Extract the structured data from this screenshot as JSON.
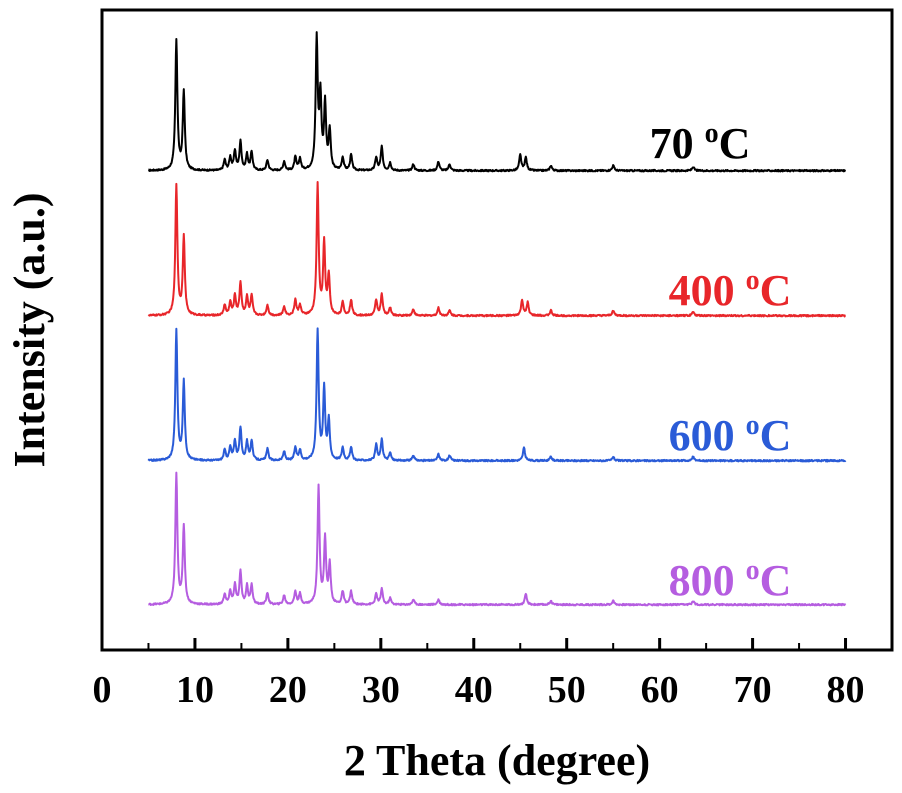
{
  "chart_data": {
    "type": "line",
    "xlabel": "2 Theta (degree)",
    "ylabel": "Intensity (a.u.)",
    "xlim": [
      0,
      85
    ],
    "xticks": [
      0,
      10,
      20,
      30,
      40,
      50,
      60,
      70,
      80
    ],
    "y_ticks_shown": false,
    "grid": false,
    "legend": "inline labels above each trace",
    "x_range_measured": [
      5,
      80
    ],
    "series": [
      {
        "name": "70 °C",
        "label_main": "70 ",
        "label_sup": "o",
        "label_unit": "C",
        "color": "#000000",
        "baseline_offset": 3,
        "baseline_height": 0.05,
        "peaks": [
          [
            8.0,
            1.0
          ],
          [
            8.8,
            0.6
          ],
          [
            13.2,
            0.08
          ],
          [
            13.8,
            0.1
          ],
          [
            14.3,
            0.15
          ],
          [
            14.9,
            0.22
          ],
          [
            15.6,
            0.12
          ],
          [
            16.1,
            0.14
          ],
          [
            17.8,
            0.08
          ],
          [
            19.6,
            0.07
          ],
          [
            20.8,
            0.1
          ],
          [
            21.3,
            0.09
          ],
          [
            23.1,
            1.0
          ],
          [
            23.5,
            0.55
          ],
          [
            24.0,
            0.5
          ],
          [
            24.5,
            0.3
          ],
          [
            25.9,
            0.1
          ],
          [
            26.8,
            0.12
          ],
          [
            29.5,
            0.1
          ],
          [
            30.1,
            0.18
          ],
          [
            31.0,
            0.06
          ],
          [
            33.5,
            0.05
          ],
          [
            36.2,
            0.07
          ],
          [
            37.4,
            0.05
          ],
          [
            45.0,
            0.12
          ],
          [
            45.6,
            0.1
          ],
          [
            48.3,
            0.04
          ],
          [
            55.0,
            0.04
          ],
          [
            63.6,
            0.03
          ]
        ]
      },
      {
        "name": "400 °C",
        "label_main": "400 ",
        "label_sup": "o",
        "label_unit": "C",
        "color": "#e8262a",
        "baseline_offset": 2,
        "baseline_height": 0.05,
        "peaks": [
          [
            8.0,
            1.0
          ],
          [
            8.8,
            0.6
          ],
          [
            13.2,
            0.08
          ],
          [
            13.8,
            0.1
          ],
          [
            14.3,
            0.15
          ],
          [
            14.9,
            0.25
          ],
          [
            15.6,
            0.14
          ],
          [
            16.1,
            0.15
          ],
          [
            17.8,
            0.08
          ],
          [
            19.6,
            0.07
          ],
          [
            20.8,
            0.12
          ],
          [
            21.3,
            0.08
          ],
          [
            23.2,
            1.0
          ],
          [
            23.9,
            0.55
          ],
          [
            24.4,
            0.3
          ],
          [
            25.9,
            0.1
          ],
          [
            26.8,
            0.12
          ],
          [
            29.5,
            0.12
          ],
          [
            30.1,
            0.16
          ],
          [
            31.0,
            0.06
          ],
          [
            33.5,
            0.05
          ],
          [
            36.2,
            0.06
          ],
          [
            37.4,
            0.04
          ],
          [
            45.2,
            0.12
          ],
          [
            45.8,
            0.1
          ],
          [
            48.3,
            0.04
          ],
          [
            55.0,
            0.04
          ],
          [
            63.6,
            0.03
          ]
        ]
      },
      {
        "name": "600 °C",
        "label_main": "600 ",
        "label_sup": "o",
        "label_unit": "C",
        "color": "#2a5bd7",
        "baseline_offset": 1,
        "baseline_height": 0.05,
        "peaks": [
          [
            8.0,
            1.0
          ],
          [
            8.8,
            0.6
          ],
          [
            13.2,
            0.08
          ],
          [
            13.8,
            0.1
          ],
          [
            14.3,
            0.15
          ],
          [
            14.9,
            0.25
          ],
          [
            15.6,
            0.14
          ],
          [
            16.1,
            0.15
          ],
          [
            17.8,
            0.09
          ],
          [
            19.6,
            0.07
          ],
          [
            20.8,
            0.1
          ],
          [
            21.3,
            0.08
          ],
          [
            23.2,
            1.0
          ],
          [
            23.9,
            0.55
          ],
          [
            24.4,
            0.3
          ],
          [
            25.9,
            0.1
          ],
          [
            26.8,
            0.1
          ],
          [
            29.5,
            0.12
          ],
          [
            30.1,
            0.16
          ],
          [
            31.0,
            0.06
          ],
          [
            33.5,
            0.04
          ],
          [
            36.2,
            0.05
          ],
          [
            37.4,
            0.04
          ],
          [
            45.4,
            0.1
          ],
          [
            48.3,
            0.03
          ],
          [
            55.0,
            0.03
          ],
          [
            63.6,
            0.03
          ]
        ]
      },
      {
        "name": "800 °C",
        "label_main": "800 ",
        "label_sup": "o",
        "label_unit": "C",
        "color": "#b55de0",
        "baseline_offset": 0,
        "baseline_height": 0.05,
        "peaks": [
          [
            8.0,
            1.0
          ],
          [
            8.8,
            0.6
          ],
          [
            13.2,
            0.08
          ],
          [
            13.8,
            0.1
          ],
          [
            14.3,
            0.15
          ],
          [
            14.9,
            0.25
          ],
          [
            15.6,
            0.14
          ],
          [
            16.1,
            0.15
          ],
          [
            17.8,
            0.09
          ],
          [
            19.6,
            0.07
          ],
          [
            20.8,
            0.1
          ],
          [
            21.3,
            0.08
          ],
          [
            23.3,
            0.9
          ],
          [
            24.0,
            0.5
          ],
          [
            24.5,
            0.3
          ],
          [
            25.9,
            0.1
          ],
          [
            26.8,
            0.1
          ],
          [
            29.5,
            0.08
          ],
          [
            30.1,
            0.12
          ],
          [
            31.0,
            0.05
          ],
          [
            33.5,
            0.04
          ],
          [
            36.2,
            0.04
          ],
          [
            45.6,
            0.08
          ],
          [
            48.3,
            0.03
          ],
          [
            55.0,
            0.03
          ],
          [
            63.6,
            0.03
          ]
        ]
      }
    ]
  }
}
